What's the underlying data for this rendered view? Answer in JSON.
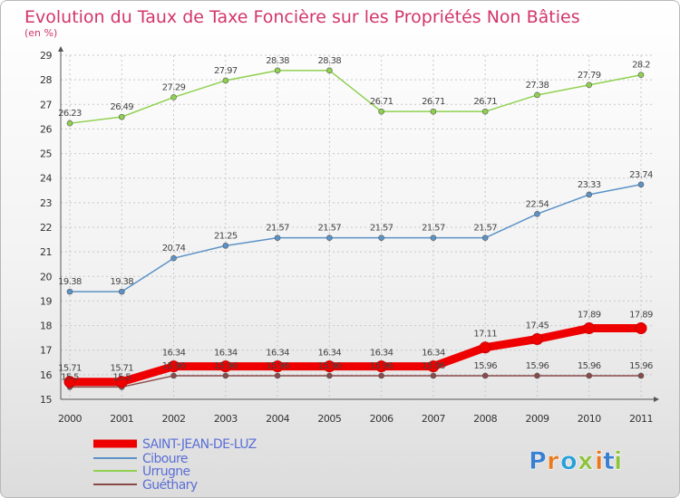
{
  "chart_data": {
    "type": "line",
    "title": "Evolution du Taux de Taxe Foncière sur les Propriétés Non Bâties",
    "subtitle": "(en %)",
    "x": [
      "2000",
      "2001",
      "2002",
      "2003",
      "2004",
      "2005",
      "2006",
      "2007",
      "2008",
      "2009",
      "2010",
      "2011"
    ],
    "ylim": [
      15,
      29
    ],
    "yticks": [
      "15",
      "16",
      "17",
      "18",
      "19",
      "20",
      "21",
      "22",
      "23",
      "24",
      "25",
      "26",
      "27",
      "28",
      "29"
    ],
    "grid": true,
    "legend_position": "bottom-left",
    "series": [
      {
        "name": "SAINT-JEAN-DE-LUZ",
        "color": "#ee0000",
        "values": [
          15.71,
          15.71,
          16.34,
          16.34,
          16.34,
          16.34,
          16.34,
          16.34,
          17.11,
          17.45,
          17.89,
          17.89
        ],
        "labels": [
          "15.71",
          "15.71",
          "16.34",
          "16.34",
          "16.34",
          "16.34",
          "16.34",
          "16.34",
          "17.11",
          "17.45",
          "17.89",
          "17.89"
        ]
      },
      {
        "name": "Ciboure",
        "color": "#5b93c7",
        "values": [
          19.38,
          19.38,
          20.74,
          21.25,
          21.57,
          21.57,
          21.57,
          21.57,
          21.57,
          22.54,
          23.33,
          23.74
        ],
        "labels": [
          "19.38",
          "19.38",
          "20.74",
          "21.25",
          "21.57",
          "21.57",
          "21.57",
          "21.57",
          "21.57",
          "22.54",
          "23.33",
          "23.74"
        ]
      },
      {
        "name": "Urrugne",
        "color": "#8fd14f",
        "values": [
          26.23,
          26.49,
          27.29,
          27.97,
          28.38,
          28.38,
          26.71,
          26.71,
          26.71,
          27.38,
          27.79,
          28.2
        ],
        "labels": [
          "26.23",
          "26.49",
          "27.29",
          "27.97",
          "28.38",
          "28.38",
          "26.71",
          "26.71",
          "26.71",
          "27.38",
          "27.79",
          "28.2"
        ]
      },
      {
        "name": "Guéthary",
        "color": "#8a4a4a",
        "values": [
          15.5,
          15.5,
          15.96,
          15.96,
          15.96,
          15.96,
          15.96,
          15.96,
          15.96,
          15.96,
          15.96,
          15.96
        ],
        "labels": [
          "15.5",
          "15.5",
          "15.96",
          "15.96",
          "15.96",
          "15.96",
          "15.96",
          "15.96",
          "15.96",
          "15.96",
          "15.96",
          "15.96"
        ]
      }
    ]
  },
  "legend": {
    "text_color": "#5b6fd6",
    "items": [
      "SAINT-JEAN-DE-LUZ",
      "Ciboure",
      "Urrugne",
      "Guéthary"
    ]
  },
  "logo": {
    "text": "Proxiti",
    "letter_colors": [
      "#3a7fd0",
      "#e8791e",
      "#2a9fd8",
      "#8fc23f",
      "#e8791e",
      "#3a7fd0",
      "#8fc23f"
    ]
  }
}
